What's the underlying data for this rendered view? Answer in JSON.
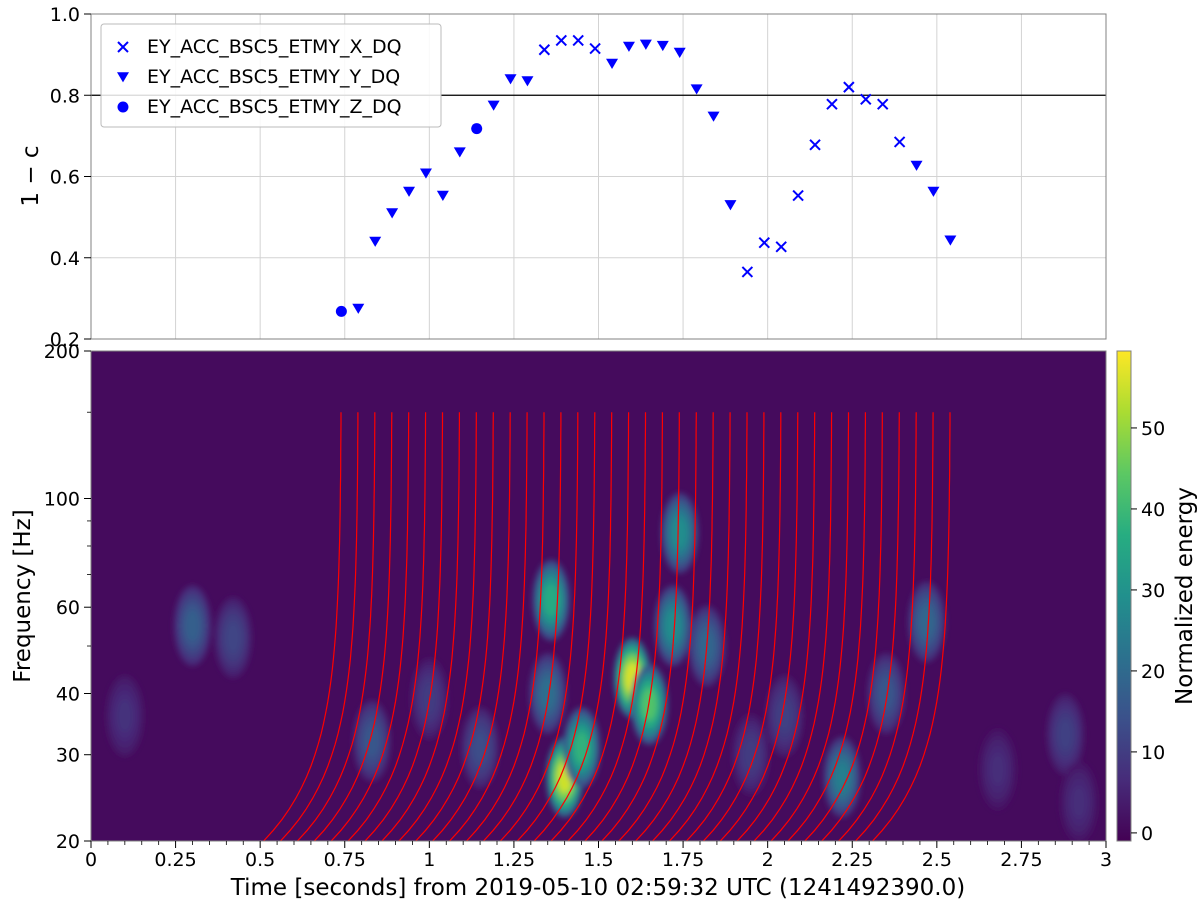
{
  "chart_data": [
    {
      "type": "scatter",
      "ylabel": "1 − c",
      "ylim": [
        0.2,
        1.0
      ],
      "yticks": [
        "0.2",
        "0.4",
        "0.6",
        "0.8",
        "1.0"
      ],
      "xlim": [
        0,
        3
      ],
      "threshold_line": 0.8,
      "grid": true,
      "legend_position": "top-left",
      "series": [
        {
          "name": "EY_ACC_BSC5_ETMY_X_DQ",
          "marker": "x",
          "color": "#0000ff",
          "points": [
            [
              1.34,
              0.912
            ],
            [
              1.39,
              0.935
            ],
            [
              1.44,
              0.935
            ],
            [
              1.49,
              0.915
            ],
            [
              1.94,
              0.365
            ],
            [
              1.99,
              0.437
            ],
            [
              2.04,
              0.427
            ],
            [
              2.09,
              0.553
            ],
            [
              2.14,
              0.678
            ],
            [
              2.19,
              0.778
            ],
            [
              2.24,
              0.82
            ],
            [
              2.29,
              0.79
            ],
            [
              2.34,
              0.778
            ],
            [
              2.39,
              0.685
            ]
          ]
        },
        {
          "name": "EY_ACC_BSC5_ETMY_Y_DQ",
          "marker": "triangle-down",
          "color": "#0000ff",
          "points": [
            [
              0.79,
              0.275
            ],
            [
              0.84,
              0.44
            ],
            [
              0.89,
              0.51
            ],
            [
              0.94,
              0.563
            ],
            [
              0.99,
              0.608
            ],
            [
              1.04,
              0.553
            ],
            [
              1.09,
              0.66
            ],
            [
              1.19,
              0.775
            ],
            [
              1.24,
              0.84
            ],
            [
              1.29,
              0.835
            ],
            [
              1.54,
              0.878
            ],
            [
              1.59,
              0.92
            ],
            [
              1.64,
              0.925
            ],
            [
              1.69,
              0.922
            ],
            [
              1.74,
              0.905
            ],
            [
              1.79,
              0.815
            ],
            [
              1.84,
              0.748
            ],
            [
              1.89,
              0.53
            ],
            [
              2.44,
              0.627
            ],
            [
              2.49,
              0.563
            ],
            [
              2.54,
              0.443
            ]
          ]
        },
        {
          "name": "EY_ACC_BSC5_ETMY_Z_DQ",
          "marker": "circle",
          "color": "#0000ff",
          "points": [
            [
              0.74,
              0.268
            ],
            [
              1.14,
              0.718
            ]
          ]
        }
      ]
    },
    {
      "type": "heatmap",
      "ylabel": "Frequency [Hz]",
      "xlabel": "Time [seconds] from 2019-05-10 02:59:32 UTC (1241492390.0)",
      "xlim": [
        0,
        3
      ],
      "ylim": [
        20,
        200
      ],
      "yscale": "log",
      "xticks": [
        "0",
        "0.25",
        "0.5",
        "0.75",
        "1",
        "1.25",
        "1.5",
        "1.75",
        "2",
        "2.25",
        "2.5",
        "2.75",
        "3"
      ],
      "yticks": [
        {
          "value": 20,
          "label": "20"
        },
        {
          "value": 30,
          "label": "30"
        },
        {
          "value": 40,
          "label": "40"
        },
        {
          "value": 60,
          "label": "60"
        },
        {
          "value": 100,
          "label": "100"
        },
        {
          "value": 200,
          "label": "200"
        }
      ],
      "colorbar": {
        "label": "Normalized energy",
        "range": [
          -1,
          59.5
        ],
        "ticks": [
          "0",
          "10",
          "20",
          "30",
          "40",
          "50"
        ],
        "colormap": "viridis"
      },
      "energy_blobs": [
        {
          "t": 1.4,
          "f": 27,
          "amp": 58
        },
        {
          "t": 1.6,
          "f": 43,
          "amp": 59
        },
        {
          "t": 1.65,
          "f": 38,
          "amp": 45
        },
        {
          "t": 1.45,
          "f": 31,
          "amp": 40
        },
        {
          "t": 1.36,
          "f": 62,
          "amp": 38
        },
        {
          "t": 1.72,
          "f": 55,
          "amp": 30
        },
        {
          "t": 1.74,
          "f": 85,
          "amp": 30
        },
        {
          "t": 2.22,
          "f": 27,
          "amp": 26
        },
        {
          "t": 2.47,
          "f": 56,
          "amp": 20
        },
        {
          "t": 1.35,
          "f": 40,
          "amp": 22
        },
        {
          "t": 1.82,
          "f": 50,
          "amp": 20
        },
        {
          "t": 2.35,
          "f": 40,
          "amp": 16
        },
        {
          "t": 0.3,
          "f": 55,
          "amp": 18
        },
        {
          "t": 0.42,
          "f": 52,
          "amp": 12
        },
        {
          "t": 0.83,
          "f": 32,
          "amp": 16
        },
        {
          "t": 1.15,
          "f": 31,
          "amp": 14
        },
        {
          "t": 1.0,
          "f": 39,
          "amp": 10
        },
        {
          "t": 1.95,
          "f": 30,
          "amp": 10
        },
        {
          "t": 2.05,
          "f": 36,
          "amp": 11
        },
        {
          "t": 2.88,
          "f": 33,
          "amp": 11
        },
        {
          "t": 0.1,
          "f": 36,
          "amp": 8
        },
        {
          "t": 2.92,
          "f": 24,
          "amp": 7
        },
        {
          "t": 2.68,
          "f": 28,
          "amp": 7
        }
      ],
      "chirp_tracks": {
        "color": "#ff0000",
        "coalescence_times": [
          0.74,
          0.79,
          0.84,
          0.89,
          0.94,
          0.99,
          1.04,
          1.09,
          1.14,
          1.19,
          1.24,
          1.29,
          1.34,
          1.39,
          1.44,
          1.49,
          1.54,
          1.59,
          1.64,
          1.69,
          1.74,
          1.79,
          1.84,
          1.89,
          1.94,
          1.99,
          2.04,
          2.09,
          2.14,
          2.19,
          2.24,
          2.29,
          2.34,
          2.39,
          2.44,
          2.49,
          2.54
        ],
        "f_start": 20,
        "f_end": 150
      }
    }
  ]
}
